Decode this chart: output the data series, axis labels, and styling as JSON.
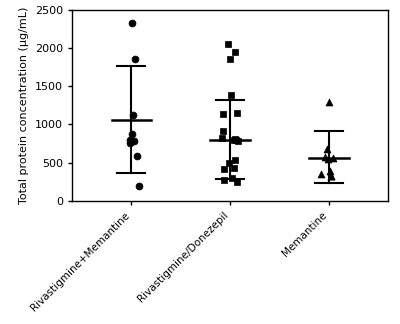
{
  "groups": [
    {
      "label": "Rivastigmine+Memantine",
      "marker": "o",
      "points": [
        2320,
        1860,
        1120,
        870,
        790,
        780,
        760,
        590,
        190
      ],
      "mean": 1060,
      "upper": 1760,
      "lower": 370
    },
    {
      "label": "Rivastigmine/Donezepil",
      "marker": "s",
      "points": [
        2050,
        1950,
        1850,
        1380,
        1150,
        1140,
        920,
        820,
        810,
        800,
        800,
        780,
        530,
        490,
        430,
        420,
        300,
        270,
        250
      ],
      "mean": 800,
      "upper": 1320,
      "lower": 280
    },
    {
      "label": "Memantine",
      "marker": "^",
      "points": [
        1290,
        680,
        570,
        560,
        550,
        390,
        350,
        330,
        330
      ],
      "mean": 555,
      "upper": 920,
      "lower": 230
    }
  ],
  "ylabel": "Total protein concentration (µg/mL)",
  "ylim": [
    0,
    2500
  ],
  "yticks": [
    0,
    500,
    1000,
    1500,
    2000,
    2500
  ],
  "color": "#000000",
  "figsize": [
    4.0,
    3.24
  ],
  "dpi": 100,
  "marker_size": 5,
  "x_positions": [
    1,
    2,
    3
  ],
  "xlim": [
    0.4,
    3.6
  ],
  "jitter_spread": 0.08,
  "bar_half": 0.2,
  "cap_half": 0.14,
  "mean_linewidth": 1.8,
  "err_linewidth": 1.5,
  "label_fontsize": 7.5,
  "ylabel_fontsize": 8,
  "tick_fontsize": 8
}
